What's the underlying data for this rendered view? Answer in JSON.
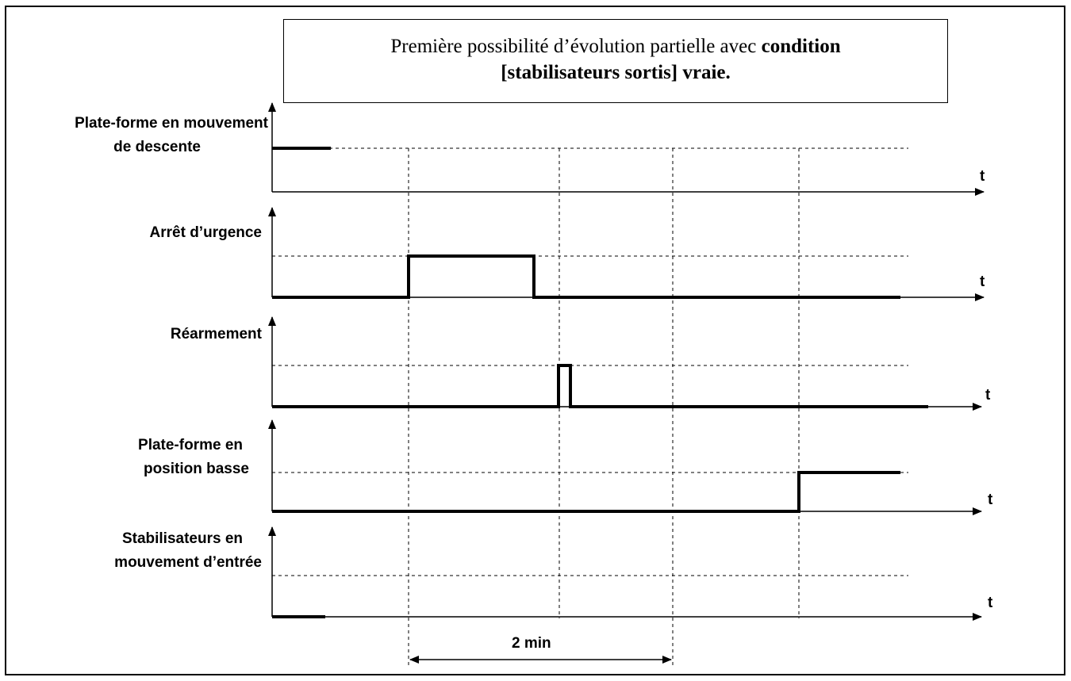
{
  "title": {
    "text_normal": "Première possibilité d’évolution partielle avec ",
    "text_bold_1": "condition",
    "text_bold_2": "[stabilisateurs sortis] vraie."
  },
  "time_axis_label": "t",
  "signals": [
    {
      "name_line1": "Plate-forme en mouvement",
      "name_line2": "de descente"
    },
    {
      "name_line1": "Arrêt d’urgence",
      "name_line2": ""
    },
    {
      "name_line1": "Réarmement",
      "name_line2": ""
    },
    {
      "name_line1": "Plate-forme en",
      "name_line2": "position basse"
    },
    {
      "name_line1": "Stabilisateurs en",
      "name_line2": "mouvement d’entrée"
    }
  ],
  "duration": {
    "label": "2 min"
  }
}
